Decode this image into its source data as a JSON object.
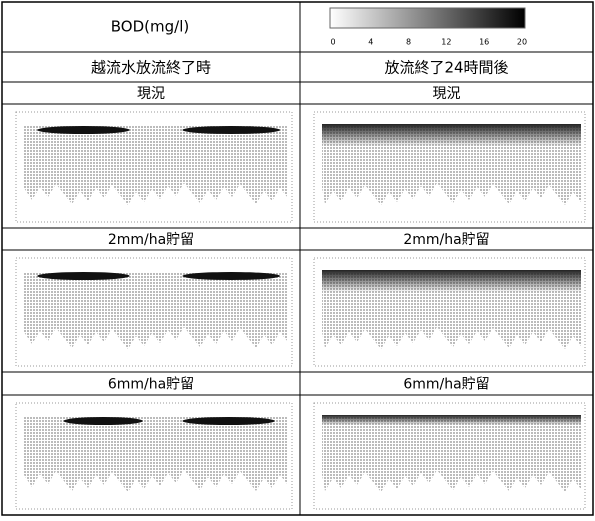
{
  "header": {
    "title": "BOD(mg/l)",
    "colorbar_ticks": [
      "0",
      "4",
      "8",
      "12",
      "16",
      "20"
    ]
  },
  "columns": [
    "越流水放流終了時",
    "放流終了24時間後"
  ],
  "rows": [
    {
      "label": "現況"
    },
    {
      "label": "2mm/ha貯留"
    },
    {
      "label": "6mm/ha貯留"
    }
  ]
}
